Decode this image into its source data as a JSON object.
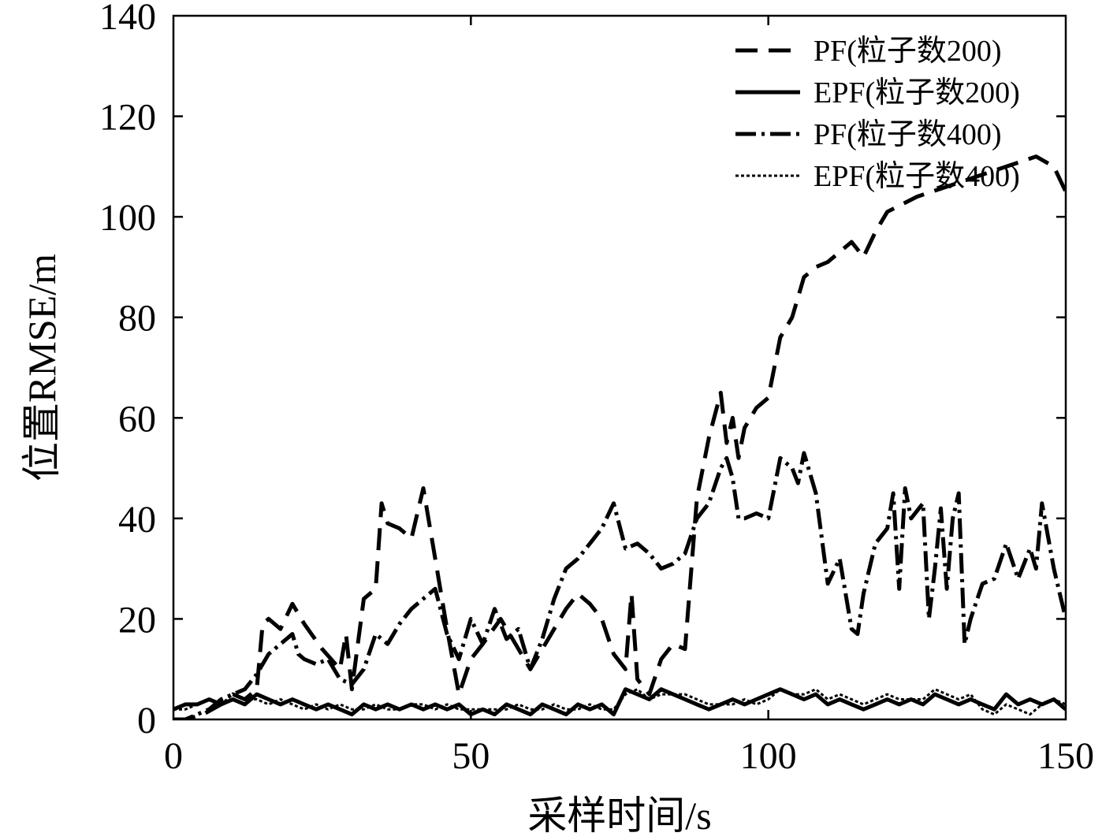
{
  "chart_data": {
    "type": "line",
    "title": "",
    "xlabel": "采样时间/s",
    "ylabel": "位置RMSE/m",
    "xlim": [
      0,
      150
    ],
    "ylim": [
      0,
      140
    ],
    "xticks": [
      "0",
      "50",
      "100",
      "150"
    ],
    "yticks": [
      "0",
      "20",
      "40",
      "60",
      "80",
      "100",
      "120",
      "140"
    ],
    "grid": false,
    "legend_position": "top-right",
    "colors": {
      "line": "#000000",
      "background": "#ffffff"
    },
    "series": [
      {
        "name": "PF(粒子数200)",
        "style": "dashed",
        "x": [
          0,
          2,
          5,
          8,
          10,
          12,
          14,
          15,
          16,
          18,
          20,
          22,
          25,
          28,
          29,
          30,
          32,
          34,
          35,
          36,
          38,
          40,
          42,
          44,
          46,
          48,
          50,
          52,
          55,
          57,
          60,
          62,
          64,
          66,
          68,
          70,
          72,
          74,
          76,
          77,
          78,
          80,
          82,
          84,
          86,
          88,
          90,
          92,
          93,
          94,
          95,
          96,
          98,
          100,
          102,
          104,
          106,
          108,
          110,
          112,
          114,
          116,
          118,
          120,
          125,
          130,
          135,
          140,
          145,
          148,
          150
        ],
        "y": [
          0,
          0,
          1,
          3,
          5,
          4,
          6,
          19,
          20,
          18,
          23,
          19,
          14,
          10,
          17,
          6,
          24,
          26,
          43,
          39,
          38,
          36,
          46,
          32,
          18,
          5,
          12,
          15,
          20,
          16,
          10,
          14,
          18,
          22,
          25,
          23,
          20,
          13,
          10,
          25,
          8,
          5,
          12,
          15,
          14,
          44,
          56,
          65,
          55,
          60,
          52,
          58,
          62,
          64,
          76,
          80,
          88,
          90,
          91,
          93,
          95,
          92,
          97,
          101,
          104,
          106,
          108,
          110,
          112,
          110,
          105
        ]
      },
      {
        "name": "EPF(粒子数200)",
        "style": "solid",
        "x": [
          0,
          2,
          4,
          6,
          8,
          10,
          12,
          14,
          16,
          18,
          20,
          22,
          24,
          26,
          28,
          30,
          32,
          34,
          36,
          38,
          40,
          42,
          44,
          46,
          48,
          50,
          52,
          54,
          56,
          58,
          60,
          62,
          64,
          66,
          68,
          70,
          72,
          74,
          76,
          78,
          80,
          82,
          84,
          86,
          88,
          90,
          92,
          94,
          96,
          98,
          100,
          102,
          104,
          106,
          108,
          110,
          112,
          114,
          116,
          118,
          120,
          122,
          124,
          126,
          128,
          130,
          132,
          134,
          136,
          138,
          140,
          142,
          144,
          146,
          148,
          150
        ],
        "y": [
          2,
          3,
          3,
          4,
          3,
          4,
          3,
          5,
          4,
          3,
          4,
          3,
          2,
          3,
          2,
          1,
          3,
          2,
          3,
          2,
          3,
          2,
          3,
          2,
          3,
          1,
          2,
          1,
          3,
          2,
          1,
          3,
          2,
          1,
          3,
          2,
          3,
          1,
          6,
          5,
          4,
          6,
          5,
          4,
          3,
          2,
          3,
          4,
          3,
          4,
          5,
          6,
          5,
          4,
          5,
          3,
          4,
          3,
          2,
          3,
          4,
          3,
          4,
          3,
          5,
          4,
          3,
          4,
          3,
          2,
          5,
          3,
          4,
          3,
          4,
          2
        ]
      },
      {
        "name": "PF(粒子数400)",
        "style": "dash-dot",
        "x": [
          0,
          2,
          4,
          6,
          8,
          10,
          12,
          14,
          16,
          18,
          20,
          21,
          22,
          24,
          26,
          28,
          30,
          32,
          34,
          36,
          38,
          40,
          42,
          44,
          46,
          48,
          50,
          52,
          54,
          56,
          58,
          60,
          62,
          64,
          66,
          68,
          70,
          72,
          74,
          76,
          78,
          80,
          82,
          84,
          86,
          88,
          90,
          92,
          93,
          94,
          95,
          96,
          98,
          100,
          102,
          104,
          105,
          106,
          108,
          110,
          112,
          114,
          115,
          116,
          118,
          120,
          121,
          122,
          123,
          124,
          126,
          127,
          128,
          129,
          130,
          131,
          132,
          133,
          134,
          136,
          138,
          140,
          142,
          144,
          145,
          146,
          148,
          150
        ],
        "y": [
          0,
          0,
          1,
          2,
          4,
          5,
          6,
          9,
          13,
          15,
          17,
          13,
          12,
          11,
          12,
          8,
          7,
          10,
          17,
          15,
          19,
          22,
          24,
          26,
          17,
          12,
          20,
          15,
          22,
          16,
          18,
          10,
          16,
          24,
          30,
          32,
          35,
          38,
          43,
          34,
          35,
          33,
          30,
          31,
          33,
          40,
          43,
          50,
          52,
          48,
          40,
          40,
          41,
          40,
          52,
          50,
          47,
          53,
          45,
          27,
          32,
          18,
          17,
          25,
          35,
          38,
          45,
          26,
          46,
          40,
          43,
          20,
          30,
          42,
          26,
          40,
          45,
          15,
          20,
          27,
          28,
          35,
          28,
          34,
          30,
          43,
          30,
          20
        ]
      },
      {
        "name": "EPF(粒子数400)",
        "style": "dotted",
        "x": [
          0,
          2,
          4,
          6,
          8,
          10,
          12,
          14,
          16,
          18,
          20,
          22,
          24,
          26,
          28,
          30,
          32,
          34,
          36,
          38,
          40,
          42,
          44,
          46,
          48,
          50,
          52,
          54,
          56,
          58,
          60,
          62,
          64,
          66,
          68,
          70,
          72,
          74,
          76,
          78,
          80,
          82,
          84,
          86,
          88,
          90,
          92,
          94,
          96,
          98,
          100,
          102,
          104,
          106,
          108,
          110,
          112,
          114,
          116,
          118,
          120,
          122,
          124,
          126,
          128,
          130,
          132,
          134,
          136,
          138,
          140,
          142,
          144,
          146,
          148,
          150
        ],
        "y": [
          2,
          2,
          3,
          4,
          3,
          5,
          4,
          4,
          3,
          4,
          3,
          2,
          3,
          2,
          3,
          2,
          2,
          3,
          2,
          2,
          3,
          3,
          2,
          3,
          2,
          2,
          2,
          2,
          2,
          3,
          2,
          2,
          3,
          2,
          2,
          3,
          2,
          2,
          5,
          6,
          4,
          5,
          5,
          5,
          4,
          3,
          3,
          3,
          4,
          3,
          4,
          6,
          5,
          5,
          6,
          4,
          5,
          4,
          3,
          4,
          5,
          4,
          4,
          4,
          6,
          5,
          4,
          5,
          2,
          1,
          3,
          2,
          1,
          3,
          4,
          3
        ]
      }
    ]
  }
}
